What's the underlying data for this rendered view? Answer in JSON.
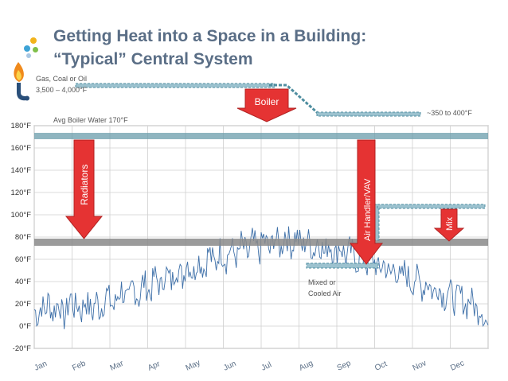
{
  "slide": {
    "title_line1": "Getting Heat into a Space in a Building:",
    "title_line2": "“Typical” Central System",
    "colors": {
      "title": "#5a6e86",
      "arrow": "#e53333",
      "series": "#3d6fa8",
      "teal": "#4f8ea0",
      "gray_band": "#8a8a8a"
    },
    "icons": [
      "flame-icon",
      "decorative-dots"
    ]
  },
  "annotations": {
    "fuel_line1": "Gas, Coal or Oil",
    "fuel_line2": "3,500 – 4,000°F",
    "boiler": "Boiler",
    "supply_temp": "~350 to 400°F",
    "avg_boiler_water": "Avg Boiler Water   170°F",
    "radiators": "Radiators",
    "air_handler": "Air Handler/VAV",
    "mix": "Mix",
    "mixed_line1": "Mixed or",
    "mixed_line2": "Cooled Air"
  },
  "chart_data": {
    "type": "line",
    "title": "",
    "xlabel": "",
    "ylabel": "",
    "ylim": [
      -20,
      180
    ],
    "y_ticks": [
      -20,
      0,
      20,
      40,
      60,
      80,
      100,
      120,
      140,
      160,
      180
    ],
    "y_tick_labels": [
      "-20°F",
      "0°F",
      "20°F",
      "40°F",
      "60°F",
      "80°F",
      "100°F",
      "120°F",
      "140°F",
      "160°F",
      "180°F"
    ],
    "x_tick_labels": [
      "Jan",
      "Feb",
      "Mar",
      "Apr",
      "May",
      "Jun",
      "Jul",
      "Aug",
      "Sep",
      "Oct",
      "Nov",
      "Dec"
    ],
    "grid": true,
    "series": [
      {
        "color": "#3d6fa8",
        "values": [
          15,
          8,
          20,
          12,
          25,
          10,
          18,
          22,
          5,
          14,
          28,
          16,
          20,
          12,
          24,
          18,
          10,
          26,
          14,
          20,
          30,
          22,
          16,
          28,
          34,
          25,
          20,
          38,
          30,
          24,
          42,
          35,
          28,
          46,
          40,
          33,
          50,
          44,
          38,
          55,
          48,
          42,
          60,
          52,
          46,
          62,
          56,
          50,
          68,
          60,
          54,
          70,
          64,
          58,
          72,
          66,
          60,
          75,
          68,
          62,
          78,
          72,
          64,
          80,
          74,
          66,
          82,
          76,
          68,
          84,
          78,
          70,
          83,
          77,
          69,
          80,
          74,
          66,
          78,
          72,
          64,
          76,
          70,
          62,
          74,
          68,
          60,
          70,
          64,
          56,
          66,
          60,
          52,
          62,
          56,
          48,
          58,
          52,
          44,
          54,
          48,
          40,
          50,
          44,
          36,
          46,
          40,
          32,
          42,
          36,
          28,
          38,
          32,
          24,
          34,
          28,
          20,
          30,
          24,
          16,
          26,
          20,
          12,
          18,
          8,
          0
        ],
        "x_range": [
          0,
          365
        ]
      }
    ],
    "reference_lines": [
      {
        "label": "Avg Boiler Water   170°F",
        "y": 170
      },
      {
        "label": "Radiators / Air Handler band",
        "y": 75
      }
    ]
  }
}
